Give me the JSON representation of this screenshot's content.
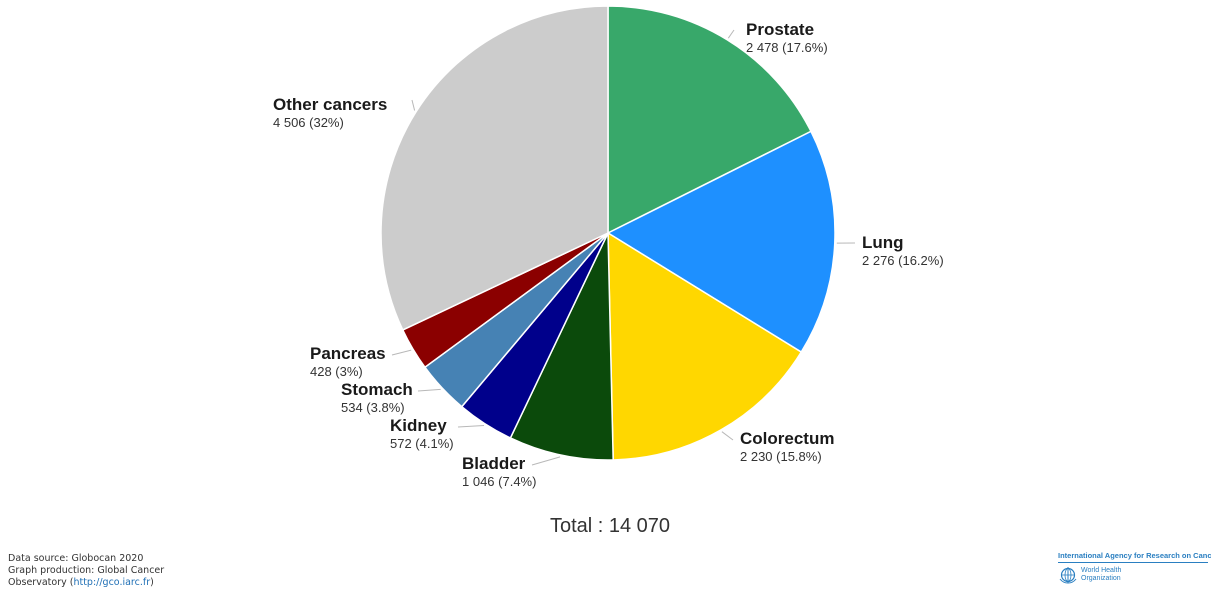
{
  "chart_data": {
    "type": "pie",
    "start_angle_deg": 0,
    "direction": "clockwise",
    "slices": [
      {
        "label": "Prostate",
        "value": 2478,
        "percent": 17.6,
        "value_text": "2 478 (17.6%)",
        "color": "#38a86a"
      },
      {
        "label": "Lung",
        "value": 2276,
        "percent": 16.2,
        "value_text": "2 276 (16.2%)",
        "color": "#1e90ff"
      },
      {
        "label": "Colorectum",
        "value": 2230,
        "percent": 15.8,
        "value_text": "2 230 (15.8%)",
        "color": "#ffd700"
      },
      {
        "label": "Bladder",
        "value": 1046,
        "percent": 7.4,
        "value_text": "1 046 (7.4%)",
        "color": "#0b4a0b"
      },
      {
        "label": "Kidney",
        "value": 572,
        "percent": 4.1,
        "value_text": "572 (4.1%)",
        "color": "#00008b"
      },
      {
        "label": "Stomach",
        "value": 534,
        "percent": 3.8,
        "value_text": "534 (3.8%)",
        "color": "#4682b4"
      },
      {
        "label": "Pancreas",
        "value": 428,
        "percent": 3.0,
        "value_text": "428 (3%)",
        "color": "#8b0000"
      },
      {
        "label": "Other cancers",
        "value": 4506,
        "percent": 32.0,
        "value_text": "4 506 (32%)",
        "color": "#cccccc"
      }
    ],
    "total": 14070
  },
  "total_text": "Total : 14 070",
  "credits": {
    "line1": "Data source: Globocan 2020",
    "line2": "Graph production: Global Cancer",
    "line3_prefix": "Observatory (",
    "line3_link": "http://gco.iarc.fr",
    "line3_suffix": ")"
  },
  "logos": {
    "iarc": "International Agency for Research on Cancer",
    "who_line1": "World Health",
    "who_line2": "Organization"
  }
}
